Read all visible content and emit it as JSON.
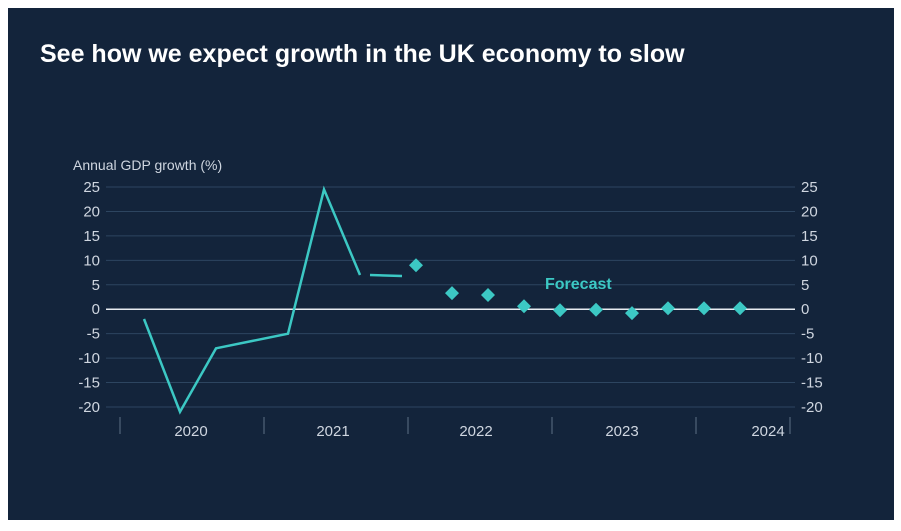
{
  "chart_data": {
    "type": "line",
    "title": "See how we expect growth in the UK economy to slow",
    "ylabel": "Annual GDP growth (%)",
    "ylim": [
      -20,
      25
    ],
    "yticks": [
      25,
      20,
      15,
      10,
      5,
      0,
      -5,
      -10,
      -15,
      -20
    ],
    "x_categories": [
      "2020",
      "2021",
      "2022",
      "2023",
      "2024"
    ],
    "annotation": "Forecast",
    "grid": true,
    "line_color": "#3cc8c4",
    "series": [
      {
        "kind": "actual",
        "points": [
          {
            "year": 2020,
            "quarter": 1,
            "y": -2
          },
          {
            "year": 2020,
            "quarter": 2,
            "y": -21
          },
          {
            "year": 2020,
            "quarter": 3,
            "y": -8
          },
          {
            "year": 2020,
            "quarter": 4,
            "y": -6.5
          },
          {
            "year": 2021,
            "quarter": 1,
            "y": -5
          },
          {
            "year": 2021,
            "quarter": 2,
            "y": 24.5
          },
          {
            "year": 2021,
            "quarter": 3,
            "y": 7
          },
          {
            "year": 2021,
            "quarter": 4,
            "y": 6.8
          }
        ]
      },
      {
        "kind": "forecast",
        "points": [
          {
            "year": 2022,
            "quarter": 1,
            "y": 9
          },
          {
            "year": 2022,
            "quarter": 2,
            "y": 3.3
          },
          {
            "year": 2022,
            "quarter": 3,
            "y": 2.9
          },
          {
            "year": 2022,
            "quarter": 4,
            "y": 0.6
          },
          {
            "year": 2023,
            "quarter": 1,
            "y": -0.2
          },
          {
            "year": 2023,
            "quarter": 2,
            "y": -0.1
          },
          {
            "year": 2023,
            "quarter": 3,
            "y": -0.8
          },
          {
            "year": 2023,
            "quarter": 4,
            "y": 0.2
          },
          {
            "year": 2024,
            "quarter": 1,
            "y": 0.2
          },
          {
            "year": 2024,
            "quarter": 2,
            "y": 0.2
          }
        ]
      }
    ]
  }
}
